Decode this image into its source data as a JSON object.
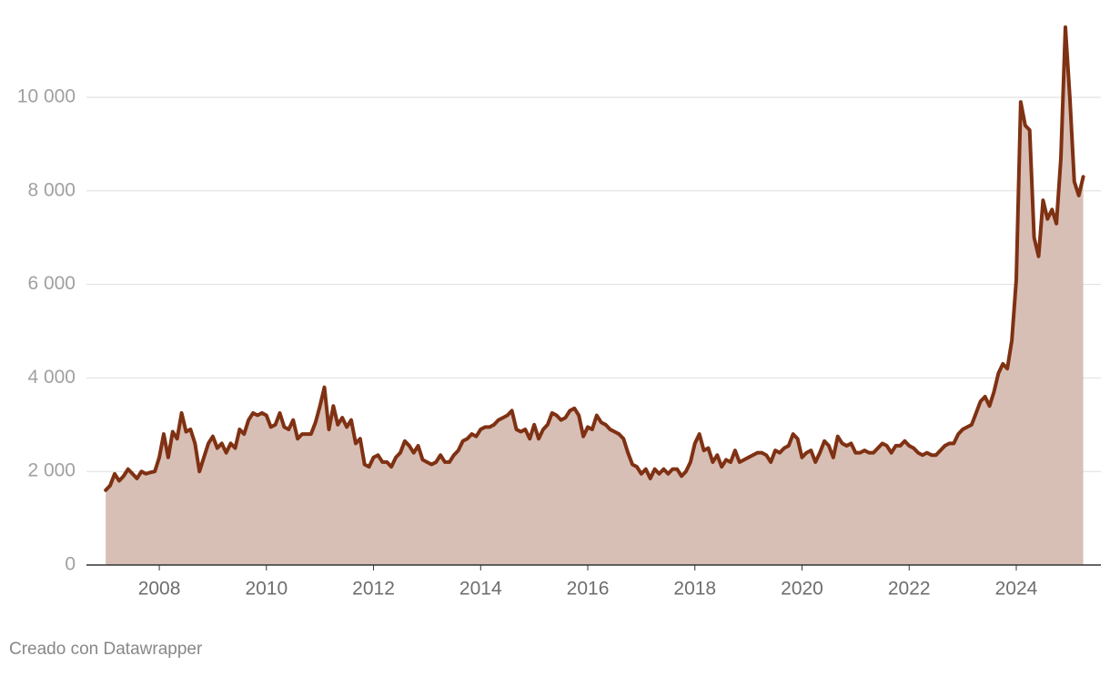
{
  "chart_data": {
    "type": "area",
    "credit": "Creado con Datawrapper",
    "color": "#7f3113",
    "fill_color": "#d8bfb5",
    "grid": true,
    "xlim": [
      2006.64,
      2025.58
    ],
    "xticks": [
      2008,
      2010,
      2012,
      2014,
      2016,
      2018,
      2020,
      2022,
      2024
    ],
    "ylim": [
      0,
      12000
    ],
    "yticks": [
      0,
      {
        "value": 2000,
        "label": "2 000"
      },
      {
        "value": 4000,
        "label": "4 000"
      },
      {
        "value": 6000,
        "label": "6 000"
      },
      {
        "value": 8000,
        "label": "8 000"
      },
      {
        "value": 10000,
        "label": "10 000"
      }
    ],
    "x": [
      2007,
      2007.083,
      2007.167,
      2007.25,
      2007.333,
      2007.417,
      2007.5,
      2007.583,
      2007.667,
      2007.75,
      2007.833,
      2007.917,
      2008,
      2008.083,
      2008.167,
      2008.25,
      2008.333,
      2008.417,
      2008.5,
      2008.583,
      2008.667,
      2008.75,
      2008.833,
      2008.917,
      2009,
      2009.083,
      2009.167,
      2009.25,
      2009.333,
      2009.417,
      2009.5,
      2009.583,
      2009.667,
      2009.75,
      2009.833,
      2009.917,
      2010,
      2010.083,
      2010.167,
      2010.25,
      2010.333,
      2010.417,
      2010.5,
      2010.583,
      2010.667,
      2010.75,
      2010.833,
      2010.917,
      2011,
      2011.083,
      2011.167,
      2011.25,
      2011.333,
      2011.417,
      2011.5,
      2011.583,
      2011.667,
      2011.75,
      2011.833,
      2011.917,
      2012,
      2012.083,
      2012.167,
      2012.25,
      2012.333,
      2012.417,
      2012.5,
      2012.583,
      2012.667,
      2012.75,
      2012.833,
      2012.917,
      2013,
      2013.083,
      2013.167,
      2013.25,
      2013.333,
      2013.417,
      2013.5,
      2013.583,
      2013.667,
      2013.75,
      2013.833,
      2013.917,
      2014,
      2014.083,
      2014.167,
      2014.25,
      2014.333,
      2014.417,
      2014.5,
      2014.583,
      2014.667,
      2014.75,
      2014.833,
      2014.917,
      2015,
      2015.083,
      2015.167,
      2015.25,
      2015.333,
      2015.417,
      2015.5,
      2015.583,
      2015.667,
      2015.75,
      2015.833,
      2015.917,
      2016,
      2016.083,
      2016.167,
      2016.25,
      2016.333,
      2016.417,
      2016.5,
      2016.583,
      2016.667,
      2016.75,
      2016.833,
      2016.917,
      2017,
      2017.083,
      2017.167,
      2017.25,
      2017.333,
      2017.417,
      2017.5,
      2017.583,
      2017.667,
      2017.75,
      2017.833,
      2017.917,
      2018,
      2018.083,
      2018.167,
      2018.25,
      2018.333,
      2018.417,
      2018.5,
      2018.583,
      2018.667,
      2018.75,
      2018.833,
      2018.917,
      2019,
      2019.083,
      2019.167,
      2019.25,
      2019.333,
      2019.417,
      2019.5,
      2019.583,
      2019.667,
      2019.75,
      2019.833,
      2019.917,
      2020,
      2020.083,
      2020.167,
      2020.25,
      2020.333,
      2020.417,
      2020.5,
      2020.583,
      2020.667,
      2020.75,
      2020.833,
      2020.917,
      2021,
      2021.083,
      2021.167,
      2021.25,
      2021.333,
      2021.417,
      2021.5,
      2021.583,
      2021.667,
      2021.75,
      2021.833,
      2021.917,
      2022,
      2022.083,
      2022.167,
      2022.25,
      2022.333,
      2022.417,
      2022.5,
      2022.583,
      2022.667,
      2022.75,
      2022.833,
      2022.917,
      2023,
      2023.083,
      2023.167,
      2023.25,
      2023.333,
      2023.417,
      2023.5,
      2023.583,
      2023.667,
      2023.75,
      2023.833,
      2023.917,
      2024,
      2024.083,
      2024.167,
      2024.25,
      2024.333,
      2024.417,
      2024.5,
      2024.583,
      2024.667,
      2024.75,
      2024.833,
      2024.917,
      2025,
      2025.083,
      2025.167,
      2025.25
    ],
    "values": [
      1600,
      1700,
      1950,
      1800,
      1900,
      2050,
      1950,
      1850,
      2000,
      1950,
      1980,
      2000,
      2300,
      2800,
      2300,
      2850,
      2700,
      3250,
      2850,
      2900,
      2600,
      2000,
      2300,
      2600,
      2750,
      2500,
      2600,
      2400,
      2600,
      2500,
      2900,
      2800,
      3100,
      3250,
      3200,
      3250,
      3200,
      2950,
      3000,
      3250,
      2950,
      2900,
      3100,
      2700,
      2800,
      2800,
      2800,
      3050,
      3400,
      3800,
      2900,
      3400,
      3000,
      3150,
      2950,
      3100,
      2600,
      2700,
      2150,
      2100,
      2300,
      2350,
      2200,
      2200,
      2100,
      2300,
      2400,
      2650,
      2550,
      2400,
      2550,
      2250,
      2200,
      2150,
      2200,
      2350,
      2200,
      2200,
      2350,
      2450,
      2650,
      2700,
      2800,
      2750,
      2900,
      2950,
      2950,
      3000,
      3100,
      3150,
      3200,
      3300,
      2900,
      2850,
      2900,
      2700,
      3000,
      2700,
      2900,
      3000,
      3250,
      3200,
      3100,
      3150,
      3300,
      3350,
      3200,
      2750,
      2950,
      2900,
      3200,
      3050,
      3000,
      2900,
      2850,
      2800,
      2700,
      2400,
      2150,
      2100,
      1950,
      2050,
      1850,
      2050,
      1950,
      2050,
      1950,
      2050,
      2050,
      1900,
      2000,
      2200,
      2600,
      2800,
      2450,
      2500,
      2200,
      2350,
      2100,
      2250,
      2200,
      2450,
      2200,
      2250,
      2300,
      2350,
      2400,
      2400,
      2350,
      2200,
      2450,
      2400,
      2500,
      2550,
      2800,
      2700,
      2300,
      2400,
      2450,
      2200,
      2400,
      2650,
      2550,
      2300,
      2750,
      2600,
      2550,
      2600,
      2400,
      2400,
      2450,
      2400,
      2400,
      2500,
      2600,
      2550,
      2400,
      2550,
      2550,
      2650,
      2550,
      2500,
      2400,
      2350,
      2400,
      2350,
      2350,
      2450,
      2550,
      2600,
      2600,
      2800,
      2900,
      2950,
      3000,
      3250,
      3500,
      3600,
      3400,
      3700,
      4100,
      4300,
      4200,
      4800,
      6100,
      9900,
      9400,
      9300,
      7000,
      6600,
      7800,
      7400,
      7600,
      7300,
      8700,
      11500,
      10000,
      8200,
      7900,
      8300
    ]
  }
}
